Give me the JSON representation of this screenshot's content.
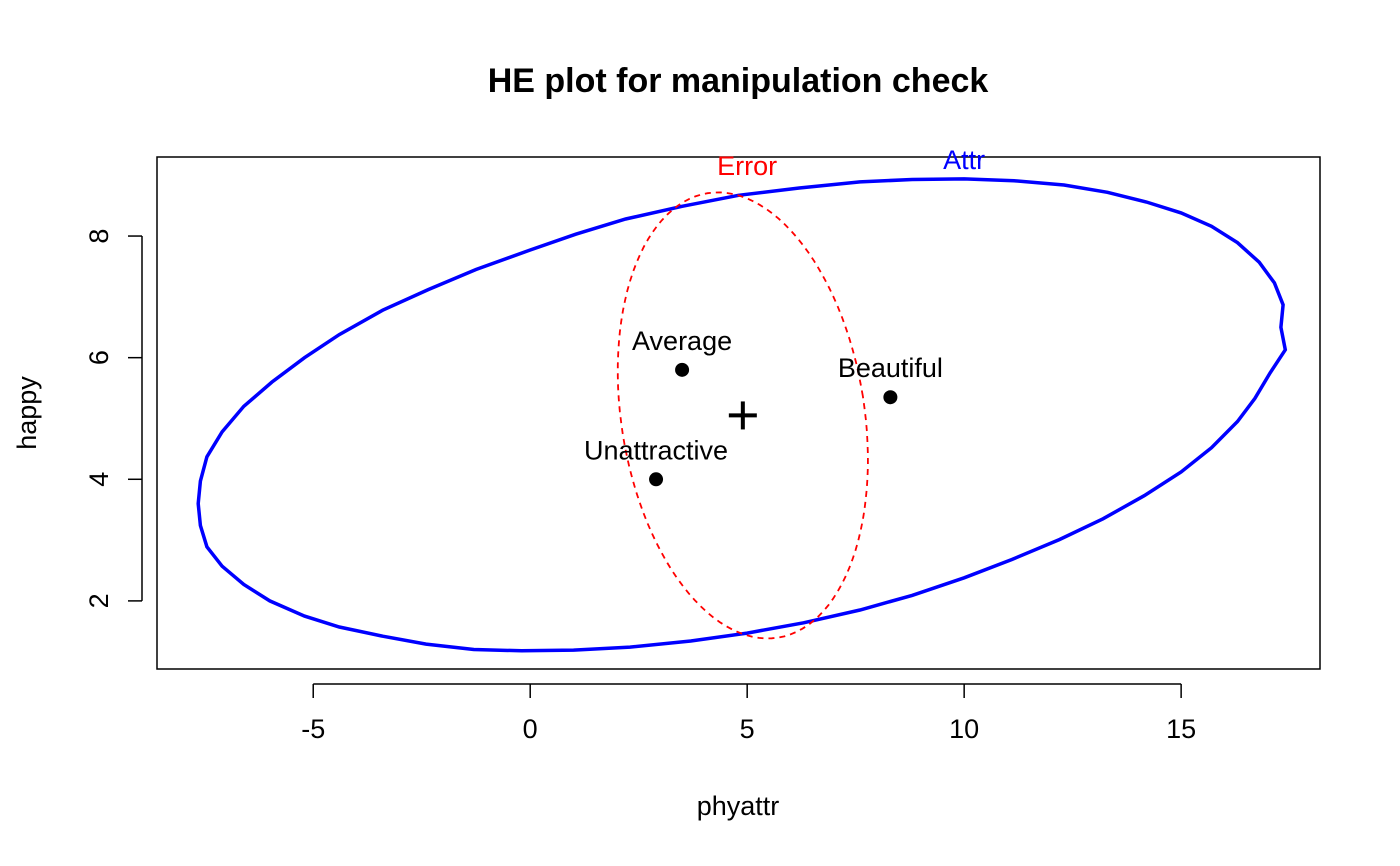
{
  "chart_data": {
    "type": "scatter",
    "title": "HE plot for manipulation check",
    "xlabel": "phyattr",
    "ylabel": "happy",
    "xlim": [
      -8.6,
      18.2
    ],
    "ylim": [
      0.88,
      9.3
    ],
    "xticks": [
      -5,
      0,
      5,
      10,
      15
    ],
    "yticks": [
      2,
      4,
      6,
      8
    ],
    "grid": false,
    "points": [
      {
        "label": "Average",
        "x": 3.5,
        "y": 5.8
      },
      {
        "label": "Beautiful",
        "x": 8.3,
        "y": 5.35
      },
      {
        "label": "Unattractive",
        "x": 2.9,
        "y": 4.0
      }
    ],
    "center": {
      "x": 4.9,
      "y": 5.05,
      "marker": "+"
    },
    "ellipses": [
      {
        "name": "Attr",
        "color": "#0000ff",
        "linestyle": "solid",
        "label_at": {
          "x": 10.0,
          "y": 9.1
        },
        "outline": [
          [
            17.3,
            6.5
          ],
          [
            17.4,
            6.13
          ],
          [
            17.05,
            5.75
          ],
          [
            16.7,
            5.33
          ],
          [
            16.3,
            4.95
          ],
          [
            15.7,
            4.52
          ],
          [
            15.0,
            4.12
          ],
          [
            14.15,
            3.73
          ],
          [
            13.2,
            3.35
          ],
          [
            12.2,
            3.01
          ],
          [
            11.1,
            2.68
          ],
          [
            10.0,
            2.38
          ],
          [
            8.8,
            2.09
          ],
          [
            7.6,
            1.85
          ],
          [
            6.3,
            1.64
          ],
          [
            5.0,
            1.47
          ],
          [
            3.7,
            1.34
          ],
          [
            2.3,
            1.24
          ],
          [
            1.0,
            1.19
          ],
          [
            -0.2,
            1.18
          ],
          [
            -1.3,
            1.2
          ],
          [
            -2.4,
            1.29
          ],
          [
            -3.4,
            1.42
          ],
          [
            -4.4,
            1.57
          ],
          [
            -5.2,
            1.75
          ],
          [
            -6.0,
            2.0
          ],
          [
            -6.6,
            2.27
          ],
          [
            -7.1,
            2.57
          ],
          [
            -7.45,
            2.89
          ],
          [
            -7.6,
            3.24
          ],
          [
            -7.65,
            3.6
          ],
          [
            -7.6,
            3.97
          ],
          [
            -7.45,
            4.37
          ],
          [
            -7.1,
            4.78
          ],
          [
            -6.6,
            5.2
          ],
          [
            -5.95,
            5.6
          ],
          [
            -5.2,
            6.0
          ],
          [
            -4.4,
            6.38
          ],
          [
            -3.4,
            6.78
          ],
          [
            -2.35,
            7.12
          ],
          [
            -1.25,
            7.45
          ],
          [
            0.0,
            7.77
          ],
          [
            1.05,
            8.03
          ],
          [
            2.2,
            8.28
          ],
          [
            3.5,
            8.49
          ],
          [
            4.8,
            8.67
          ],
          [
            6.2,
            8.79
          ],
          [
            7.6,
            8.89
          ],
          [
            8.8,
            8.93
          ],
          [
            10.0,
            8.94
          ],
          [
            11.15,
            8.91
          ],
          [
            12.3,
            8.84
          ],
          [
            13.3,
            8.72
          ],
          [
            14.2,
            8.56
          ],
          [
            15.0,
            8.38
          ],
          [
            15.7,
            8.16
          ],
          [
            16.3,
            7.89
          ],
          [
            16.8,
            7.57
          ],
          [
            17.15,
            7.23
          ],
          [
            17.35,
            6.87
          ],
          [
            17.3,
            6.5
          ]
        ]
      },
      {
        "name": "Error",
        "color": "#ff0000",
        "linestyle": "dashed",
        "label_at": {
          "x": 5.0,
          "y": 9.0
        },
        "center": [
          4.9,
          5.05
        ],
        "semi_axis_x": 2.8,
        "semi_axis_y": 3.7,
        "tilt_deg": -9
      }
    ]
  }
}
